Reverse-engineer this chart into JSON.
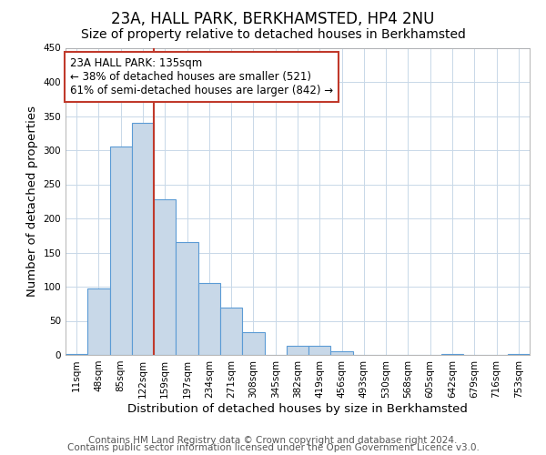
{
  "title": "23A, HALL PARK, BERKHAMSTED, HP4 2NU",
  "subtitle": "Size of property relative to detached houses in Berkhamsted",
  "xlabel": "Distribution of detached houses by size in Berkhamsted",
  "ylabel": "Number of detached properties",
  "bin_labels": [
    "11sqm",
    "48sqm",
    "85sqm",
    "122sqm",
    "159sqm",
    "197sqm",
    "234sqm",
    "271sqm",
    "308sqm",
    "345sqm",
    "382sqm",
    "419sqm",
    "456sqm",
    "493sqm",
    "530sqm",
    "568sqm",
    "605sqm",
    "642sqm",
    "679sqm",
    "716sqm",
    "753sqm"
  ],
  "bar_values": [
    2,
    98,
    305,
    340,
    228,
    165,
    105,
    70,
    33,
    0,
    14,
    13,
    5,
    0,
    0,
    0,
    0,
    2,
    0,
    0,
    2
  ],
  "bar_color": "#c8d8e8",
  "bar_edge_color": "#5b9bd5",
  "ylim": [
    0,
    450
  ],
  "yticks": [
    0,
    50,
    100,
    150,
    200,
    250,
    300,
    350,
    400,
    450
  ],
  "property_line_color": "#c0392b",
  "annotation_line1": "23A HALL PARK: 135sqm",
  "annotation_line2": "← 38% of detached houses are smaller (521)",
  "annotation_line3": "61% of semi-detached houses are larger (842) →",
  "annotation_box_color": "#ffffff",
  "annotation_box_edge": "#c0392b",
  "footer1": "Contains HM Land Registry data © Crown copyright and database right 2024.",
  "footer2": "Contains public sector information licensed under the Open Government Licence v3.0.",
  "bg_color": "#ffffff",
  "grid_color": "#c8d8e8",
  "title_fontsize": 12,
  "subtitle_fontsize": 10,
  "axis_label_fontsize": 9.5,
  "tick_fontsize": 7.5,
  "annotation_fontsize": 8.5,
  "footer_fontsize": 7.5
}
